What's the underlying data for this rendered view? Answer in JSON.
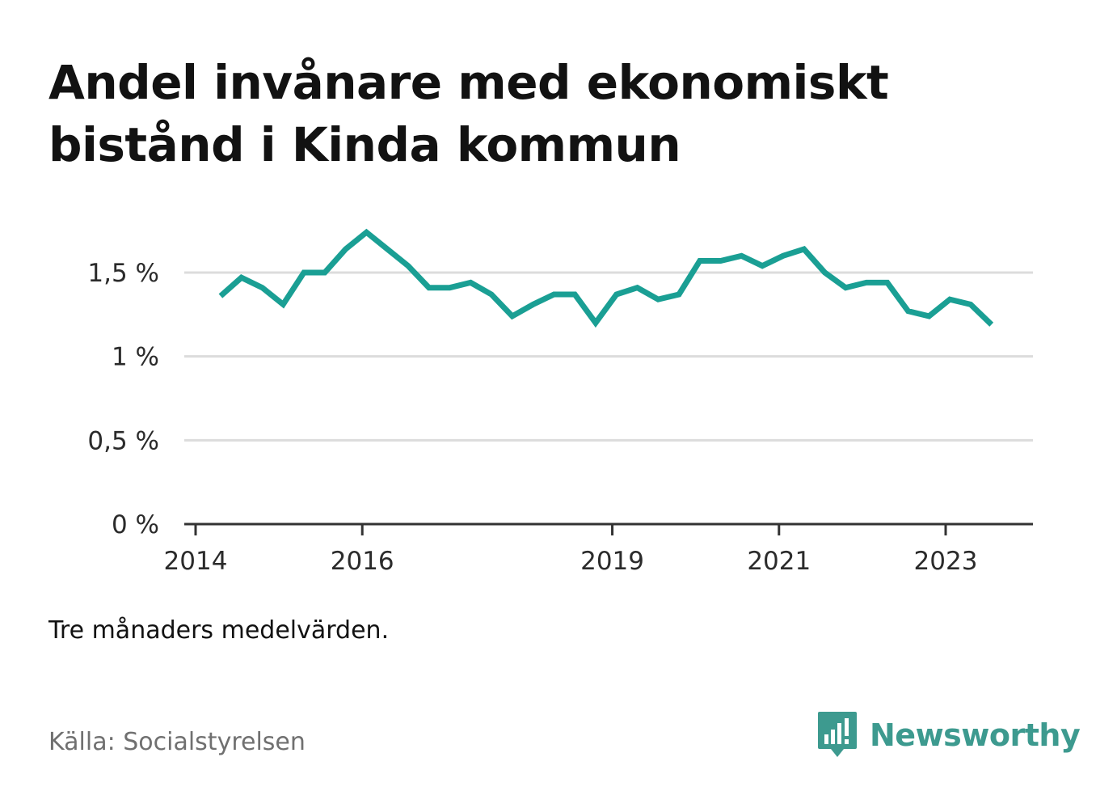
{
  "title": "Andel invånare med ekonomiskt bistånd i Kinda kommun",
  "note": "Tre månaders medelvärden.",
  "source": "Källa: Socialstyrelsen",
  "brand": {
    "name": "Newsworthy",
    "logo_icon": "newsworthy-chart-bubble-icon",
    "color": "#3d9a8f"
  },
  "chart_data": {
    "type": "line",
    "title": "Andel invånare med ekonomiskt bistånd i Kinda kommun",
    "xlabel": "",
    "ylabel": "",
    "x_ticks": [
      {
        "label": "2014",
        "x": 2014.0
      },
      {
        "label": "2016",
        "x": 2016.0
      },
      {
        "label": "2019",
        "x": 2019.0
      },
      {
        "label": "2021",
        "x": 2021.0
      },
      {
        "label": "2023",
        "x": 2023.0
      }
    ],
    "y_ticks": [
      {
        "label": "0 %",
        "value": 0
      },
      {
        "label": "0,5 %",
        "value": 0.5
      },
      {
        "label": "1 %",
        "value": 1.0
      },
      {
        "label": "1,5 %",
        "value": 1.5
      }
    ],
    "xlim": [
      2014.0,
      2024.0
    ],
    "ylim": [
      0,
      1.8
    ],
    "grid": true,
    "line_color": "#1a9f94",
    "series": [
      {
        "values": [
          {
            "x": 2014.3,
            "y": 1.36
          },
          {
            "x": 2014.55,
            "y": 1.47
          },
          {
            "x": 2014.8,
            "y": 1.41
          },
          {
            "x": 2015.05,
            "y": 1.31
          },
          {
            "x": 2015.3,
            "y": 1.5
          },
          {
            "x": 2015.55,
            "y": 1.5
          },
          {
            "x": 2015.8,
            "y": 1.64
          },
          {
            "x": 2016.05,
            "y": 1.74
          },
          {
            "x": 2016.3,
            "y": 1.64
          },
          {
            "x": 2016.55,
            "y": 1.54
          },
          {
            "x": 2016.8,
            "y": 1.41
          },
          {
            "x": 2017.05,
            "y": 1.41
          },
          {
            "x": 2017.3,
            "y": 1.44
          },
          {
            "x": 2017.55,
            "y": 1.37
          },
          {
            "x": 2017.8,
            "y": 1.24
          },
          {
            "x": 2018.05,
            "y": 1.31
          },
          {
            "x": 2018.3,
            "y": 1.37
          },
          {
            "x": 2018.55,
            "y": 1.37
          },
          {
            "x": 2018.8,
            "y": 1.2
          },
          {
            "x": 2019.05,
            "y": 1.37
          },
          {
            "x": 2019.3,
            "y": 1.41
          },
          {
            "x": 2019.55,
            "y": 1.34
          },
          {
            "x": 2019.8,
            "y": 1.37
          },
          {
            "x": 2020.05,
            "y": 1.57
          },
          {
            "x": 2020.3,
            "y": 1.57
          },
          {
            "x": 2020.55,
            "y": 1.6
          },
          {
            "x": 2020.8,
            "y": 1.54
          },
          {
            "x": 2021.05,
            "y": 1.6
          },
          {
            "x": 2021.3,
            "y": 1.64
          },
          {
            "x": 2021.55,
            "y": 1.5
          },
          {
            "x": 2021.8,
            "y": 1.41
          },
          {
            "x": 2022.05,
            "y": 1.44
          },
          {
            "x": 2022.3,
            "y": 1.44
          },
          {
            "x": 2022.55,
            "y": 1.27
          },
          {
            "x": 2022.8,
            "y": 1.24
          },
          {
            "x": 2023.05,
            "y": 1.34
          },
          {
            "x": 2023.3,
            "y": 1.31
          },
          {
            "x": 2023.55,
            "y": 1.19
          }
        ]
      }
    ]
  }
}
